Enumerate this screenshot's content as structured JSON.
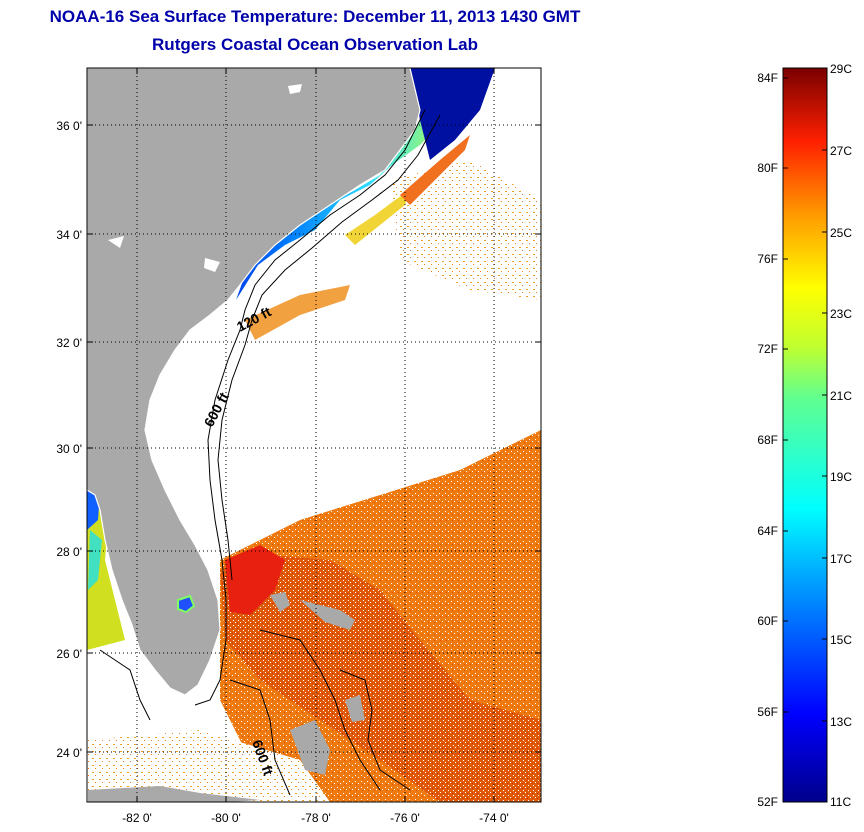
{
  "title": {
    "line1": "NOAA-16 Sea Surface Temperature:  December 11, 2013 1430 GMT",
    "line2": "Rutgers Coastal Ocean Observation Lab"
  },
  "map": {
    "lon_ticks": [
      "-82 0'",
      "-80 0'",
      "-78 0'",
      "-76 0'",
      "-74 0'"
    ],
    "lat_ticks": [
      "36 0'",
      "34 0'",
      "32 0'",
      "30 0'",
      "28 0'",
      "26 0'",
      "24 0'"
    ],
    "contour_labels": [
      "120 ft",
      "600 ft",
      "600 ft"
    ],
    "colors": {
      "land": "#a9a9a9",
      "ocean": "#ffffff",
      "title": "#0000aa"
    }
  },
  "colorbar": {
    "fahrenheit_labels": [
      "84F",
      "80F",
      "76F",
      "72F",
      "68F",
      "64F",
      "60F",
      "56F",
      "52F"
    ],
    "celsius_labels": [
      "29C",
      "27C",
      "25C",
      "23C",
      "21C",
      "19C",
      "17C",
      "15C",
      "13C",
      "11C"
    ],
    "range_c": [
      11,
      29
    ],
    "range_f": [
      52,
      84
    ]
  }
}
